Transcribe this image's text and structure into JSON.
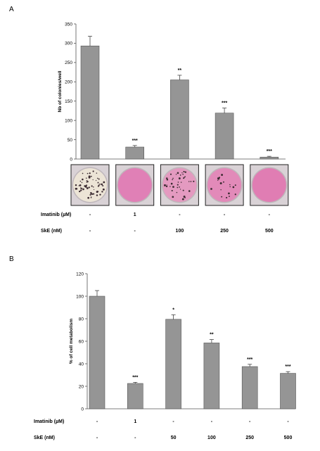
{
  "chart_data": [
    {
      "panel": "A",
      "type": "bar",
      "ylabel": "Nb of colonies/well",
      "ylim": [
        0,
        350
      ],
      "yticks": [
        0,
        50,
        100,
        150,
        200,
        250,
        300,
        350
      ],
      "values": [
        293,
        31,
        205,
        119,
        5
      ],
      "errors": [
        25,
        4,
        12,
        13,
        2
      ],
      "significance": [
        "",
        "***",
        "**",
        "***",
        "***"
      ],
      "rows": [
        {
          "label": "Imatinib (µM)",
          "values": [
            "-",
            "1",
            "-",
            "-",
            "-"
          ]
        },
        {
          "label": "SkE (nM)",
          "values": [
            "-",
            "-",
            "100",
            "250",
            "500"
          ]
        }
      ],
      "wells": [
        {
          "fill": "#ece4d6",
          "colonies": "high"
        },
        {
          "fill": "#e080b6",
          "colonies": "none"
        },
        {
          "fill": "#e49ac0",
          "colonies": "medium"
        },
        {
          "fill": "#e28ab9",
          "colonies": "low"
        },
        {
          "fill": "#e07db3",
          "colonies": "none"
        }
      ],
      "bar_color": "#959595"
    },
    {
      "panel": "B",
      "type": "bar",
      "ylabel": "% of cell metabolism",
      "ylim": [
        0,
        120
      ],
      "yticks": [
        0,
        20,
        40,
        60,
        80,
        100,
        120
      ],
      "values": [
        100,
        22.5,
        79.5,
        58.5,
        37.5,
        31.5
      ],
      "errors": [
        5,
        1,
        4,
        3,
        2,
        1.5
      ],
      "significance": [
        "",
        "***",
        "*",
        "**",
        "***",
        "***"
      ],
      "rows": [
        {
          "label": "Imatinib (µM)",
          "values": [
            "-",
            "1",
            "-",
            "-",
            "-",
            "-"
          ]
        },
        {
          "label": "SkE (nM)",
          "values": [
            "-",
            "-",
            "50",
            "100",
            "250",
            "500"
          ]
        }
      ],
      "bar_color": "#959595"
    }
  ]
}
